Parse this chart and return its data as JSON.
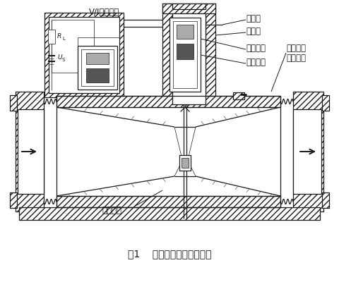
{
  "title": "图1    流量变送器结构原理图",
  "bg_color": "#ffffff",
  "line_color": "#1a1a1a",
  "labels": {
    "vi_circuit": "V/I转换电路",
    "cantilever": "悬臂架",
    "strain_gauge": "应变片",
    "magnet": "永久磁钢",
    "feedback_coil": "反馈动圈",
    "metal_diaphragm_1": "金属波纹",
    "metal_diaphragm_2": "弹性膜片",
    "venturi": "文丘里管",
    "us_main": "U",
    "us_sub": "S",
    "rl_main": "R",
    "rl_sub": "L"
  },
  "figsize": [
    4.8,
    4.0
  ],
  "dpi": 100
}
